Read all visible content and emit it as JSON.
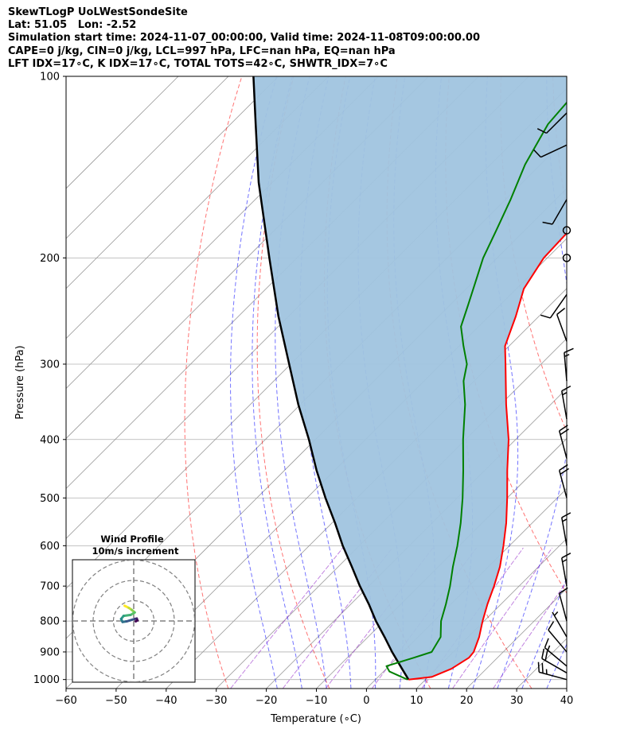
{
  "header": {
    "lines": [
      "SkewTLogP UoLWestSondeSite",
      "Lat: 51.05   Lon: -2.52",
      "Simulation start time: 2024-11-07_00:00:00, Valid time: 2024-11-08T09:00:00.00",
      "CAPE=0 j/kg, CIN=0 j/kg, LCL=997 hPa, LFC=nan hPa, EQ=nan hPa",
      "LFT IDX=17∘C, K IDX=17∘C, TOTAL TOTS=42∘C, SHWTR_IDX=7∘C"
    ]
  },
  "colors": {
    "temperature": "#ff0000",
    "dewpoint": "#008000",
    "parcel": "#000000",
    "shade": "#a0c4df",
    "dry_adiabat": "#ff0000",
    "moist_adiabat": "#0000ff",
    "isotherm": "#999999",
    "mixing_ratio": "#9932cc"
  },
  "chart_data": {
    "type": "skew-t log-p",
    "xlabel": "Temperature (∘C)",
    "ylabel": "Pressure (hPa)",
    "xlim": [
      -60,
      40
    ],
    "ylim": [
      1035,
      100
    ],
    "x_ticks": [
      -60,
      -50,
      -40,
      -30,
      -20,
      -10,
      0,
      10,
      20,
      30,
      40
    ],
    "y_ticks": [
      100,
      200,
      300,
      400,
      500,
      600,
      700,
      800,
      900,
      1000
    ],
    "y_scale": "log",
    "grid": true,
    "series": [
      {
        "role": "temperature",
        "points": [
          {
            "p": 1000,
            "t": 6.6
          },
          {
            "p": 990,
            "t": 10.7
          },
          {
            "p": 960,
            "t": 13.0
          },
          {
            "p": 920,
            "t": 14.3
          },
          {
            "p": 900,
            "t": 14.1
          },
          {
            "p": 850,
            "t": 12.2
          },
          {
            "p": 800,
            "t": 9.7
          },
          {
            "p": 750,
            "t": 7.3
          },
          {
            "p": 700,
            "t": 5.0
          },
          {
            "p": 650,
            "t": 2.3
          },
          {
            "p": 600,
            "t": -1.2
          },
          {
            "p": 550,
            "t": -5.2
          },
          {
            "p": 500,
            "t": -10.0
          },
          {
            "p": 450,
            "t": -15.5
          },
          {
            "p": 400,
            "t": -21.4
          },
          {
            "p": 350,
            "t": -28.9
          },
          {
            "p": 300,
            "t": -37.1
          },
          {
            "p": 280,
            "t": -40.8
          },
          {
            "p": 250,
            "t": -44.6
          },
          {
            "p": 225,
            "t": -48.5
          },
          {
            "p": 200,
            "t": -50.7
          },
          {
            "p": 180,
            "t": -51.1
          },
          {
            "p": 160,
            "t": -51.5
          },
          {
            "p": 140,
            "t": -53.3
          },
          {
            "p": 120,
            "t": -57.0
          },
          {
            "p": 110,
            "t": -58.7
          },
          {
            "p": 100,
            "t": -61.0
          }
        ]
      },
      {
        "role": "dewpoint",
        "points": [
          {
            "p": 1000,
            "t": 6.4
          },
          {
            "p": 990,
            "t": 4.7
          },
          {
            "p": 970,
            "t": 1.2
          },
          {
            "p": 950,
            "t": -0.5
          },
          {
            "p": 920,
            "t": 3.3
          },
          {
            "p": 900,
            "t": 5.7
          },
          {
            "p": 850,
            "t": 4.5
          },
          {
            "p": 800,
            "t": 1.4
          },
          {
            "p": 750,
            "t": -1.0
          },
          {
            "p": 700,
            "t": -3.8
          },
          {
            "p": 650,
            "t": -7.1
          },
          {
            "p": 600,
            "t": -10.4
          },
          {
            "p": 550,
            "t": -14.3
          },
          {
            "p": 500,
            "t": -18.9
          },
          {
            "p": 450,
            "t": -24.3
          },
          {
            "p": 400,
            "t": -30.5
          },
          {
            "p": 350,
            "t": -37.1
          },
          {
            "p": 320,
            "t": -42.1
          },
          {
            "p": 300,
            "t": -44.8
          },
          {
            "p": 280,
            "t": -49.1
          },
          {
            "p": 260,
            "t": -53.5
          },
          {
            "p": 240,
            "t": -56.3
          },
          {
            "p": 220,
            "t": -59.4
          },
          {
            "p": 200,
            "t": -62.8
          },
          {
            "p": 180,
            "t": -65.7
          },
          {
            "p": 160,
            "t": -69.0
          },
          {
            "p": 140,
            "t": -73.1
          },
          {
            "p": 120,
            "t": -76.6
          },
          {
            "p": 110,
            "t": -77.2
          },
          {
            "p": 100,
            "t": -77.3
          }
        ]
      },
      {
        "role": "parcel",
        "points": [
          {
            "p": 1000,
            "t": 6.6
          },
          {
            "p": 950,
            "t": 2.3
          },
          {
            "p": 900,
            "t": -2.2
          },
          {
            "p": 850,
            "t": -6.7
          },
          {
            "p": 800,
            "t": -11.6
          },
          {
            "p": 750,
            "t": -16.4
          },
          {
            "p": 700,
            "t": -21.8
          },
          {
            "p": 650,
            "t": -27.3
          },
          {
            "p": 600,
            "t": -33.3
          },
          {
            "p": 550,
            "t": -39.4
          },
          {
            "p": 500,
            "t": -46.3
          },
          {
            "p": 450,
            "t": -53.6
          },
          {
            "p": 400,
            "t": -61.3
          },
          {
            "p": 350,
            "t": -70.4
          },
          {
            "p": 300,
            "t": -80.3
          },
          {
            "p": 250,
            "t": -92.0
          },
          {
            "p": 200,
            "t": -105.5
          },
          {
            "p": 150,
            "t": -122.7
          },
          {
            "p": 120,
            "t": -135.0
          },
          {
            "p": 100,
            "t": -145.0
          }
        ]
      }
    ],
    "wind_barbs": [
      {
        "p": 1000,
        "speed_kt": 25,
        "dir_deg": 285
      },
      {
        "p": 975,
        "speed_kt": 20,
        "dir_deg": 300
      },
      {
        "p": 950,
        "speed_kt": 15,
        "dir_deg": 310
      },
      {
        "p": 900,
        "speed_kt": 10,
        "dir_deg": 320
      },
      {
        "p": 850,
        "speed_kt": 5,
        "dir_deg": 330
      },
      {
        "p": 800,
        "speed_kt": 10,
        "dir_deg": 345
      },
      {
        "p": 700,
        "speed_kt": 15,
        "dir_deg": 350
      },
      {
        "p": 600,
        "speed_kt": 15,
        "dir_deg": 350
      },
      {
        "p": 500,
        "speed_kt": 20,
        "dir_deg": 345
      },
      {
        "p": 430,
        "speed_kt": 20,
        "dir_deg": 345
      },
      {
        "p": 370,
        "speed_kt": 15,
        "dir_deg": 350
      },
      {
        "p": 320,
        "speed_kt": 15,
        "dir_deg": 355
      },
      {
        "p": 275,
        "speed_kt": 10,
        "dir_deg": 340
      },
      {
        "p": 230,
        "speed_kt": 10,
        "dir_deg": 215
      },
      {
        "p": 200,
        "speed_kt": 0,
        "dir_deg": 0
      },
      {
        "p": 180,
        "speed_kt": 0,
        "dir_deg": 0
      },
      {
        "p": 160,
        "speed_kt": 10,
        "dir_deg": 210
      },
      {
        "p": 130,
        "speed_kt": 10,
        "dir_deg": 245
      },
      {
        "p": 115,
        "speed_kt": 10,
        "dir_deg": 225
      }
    ],
    "inset": {
      "type": "hodograph",
      "title": "Wind Profile",
      "subtitle": "10m/s increment",
      "rings": [
        10,
        20,
        30
      ],
      "points": [
        {
          "u": -4.5,
          "v": 7.5
        },
        {
          "u": -2.5,
          "v": 6.5
        },
        {
          "u": -1.0,
          "v": 5.5
        },
        {
          "u": 0.5,
          "v": 4.2
        },
        {
          "u": -1.5,
          "v": 3.0
        },
        {
          "u": -5.0,
          "v": 2.5
        },
        {
          "u": -6.2,
          "v": 1.0
        },
        {
          "u": -5.5,
          "v": -0.5
        },
        {
          "u": -3.5,
          "v": -0.2
        },
        {
          "u": 0.5,
          "v": 1.0
        },
        {
          "u": 1.5,
          "v": 1.2
        },
        {
          "u": 1.8,
          "v": 0.3
        },
        {
          "u": 1.0,
          "v": -0.2
        }
      ]
    }
  }
}
